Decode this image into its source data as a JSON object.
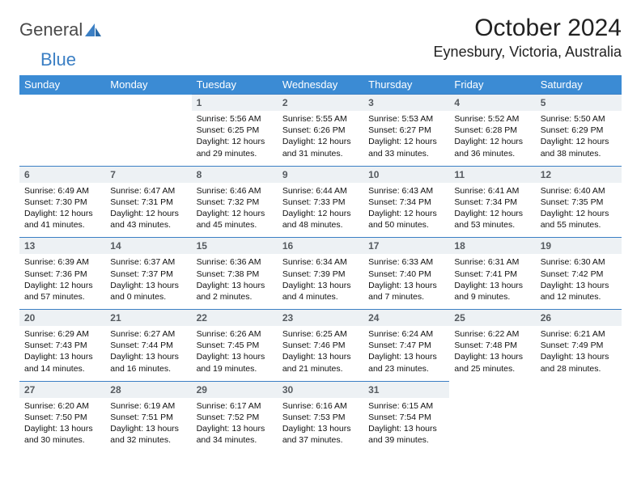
{
  "logo": {
    "text1": "General",
    "text2": "Blue"
  },
  "title": "October 2024",
  "location": "Eynesbury, Victoria, Australia",
  "colors": {
    "header_bg": "#3b8bd4",
    "header_fg": "#ffffff",
    "daynum_bg": "#edf1f4",
    "daynum_fg": "#565b60",
    "border": "#3b7fc4",
    "logo_gray": "#4a4a4a",
    "logo_blue": "#3b7fc4"
  },
  "day_headers": [
    "Sunday",
    "Monday",
    "Tuesday",
    "Wednesday",
    "Thursday",
    "Friday",
    "Saturday"
  ],
  "weeks": [
    [
      null,
      null,
      {
        "n": "1",
        "sr": "Sunrise: 5:56 AM",
        "ss": "Sunset: 6:25 PM",
        "d1": "Daylight: 12 hours",
        "d2": "and 29 minutes."
      },
      {
        "n": "2",
        "sr": "Sunrise: 5:55 AM",
        "ss": "Sunset: 6:26 PM",
        "d1": "Daylight: 12 hours",
        "d2": "and 31 minutes."
      },
      {
        "n": "3",
        "sr": "Sunrise: 5:53 AM",
        "ss": "Sunset: 6:27 PM",
        "d1": "Daylight: 12 hours",
        "d2": "and 33 minutes."
      },
      {
        "n": "4",
        "sr": "Sunrise: 5:52 AM",
        "ss": "Sunset: 6:28 PM",
        "d1": "Daylight: 12 hours",
        "d2": "and 36 minutes."
      },
      {
        "n": "5",
        "sr": "Sunrise: 5:50 AM",
        "ss": "Sunset: 6:29 PM",
        "d1": "Daylight: 12 hours",
        "d2": "and 38 minutes."
      }
    ],
    [
      {
        "n": "6",
        "sr": "Sunrise: 6:49 AM",
        "ss": "Sunset: 7:30 PM",
        "d1": "Daylight: 12 hours",
        "d2": "and 41 minutes."
      },
      {
        "n": "7",
        "sr": "Sunrise: 6:47 AM",
        "ss": "Sunset: 7:31 PM",
        "d1": "Daylight: 12 hours",
        "d2": "and 43 minutes."
      },
      {
        "n": "8",
        "sr": "Sunrise: 6:46 AM",
        "ss": "Sunset: 7:32 PM",
        "d1": "Daylight: 12 hours",
        "d2": "and 45 minutes."
      },
      {
        "n": "9",
        "sr": "Sunrise: 6:44 AM",
        "ss": "Sunset: 7:33 PM",
        "d1": "Daylight: 12 hours",
        "d2": "and 48 minutes."
      },
      {
        "n": "10",
        "sr": "Sunrise: 6:43 AM",
        "ss": "Sunset: 7:34 PM",
        "d1": "Daylight: 12 hours",
        "d2": "and 50 minutes."
      },
      {
        "n": "11",
        "sr": "Sunrise: 6:41 AM",
        "ss": "Sunset: 7:34 PM",
        "d1": "Daylight: 12 hours",
        "d2": "and 53 minutes."
      },
      {
        "n": "12",
        "sr": "Sunrise: 6:40 AM",
        "ss": "Sunset: 7:35 PM",
        "d1": "Daylight: 12 hours",
        "d2": "and 55 minutes."
      }
    ],
    [
      {
        "n": "13",
        "sr": "Sunrise: 6:39 AM",
        "ss": "Sunset: 7:36 PM",
        "d1": "Daylight: 12 hours",
        "d2": "and 57 minutes."
      },
      {
        "n": "14",
        "sr": "Sunrise: 6:37 AM",
        "ss": "Sunset: 7:37 PM",
        "d1": "Daylight: 13 hours",
        "d2": "and 0 minutes."
      },
      {
        "n": "15",
        "sr": "Sunrise: 6:36 AM",
        "ss": "Sunset: 7:38 PM",
        "d1": "Daylight: 13 hours",
        "d2": "and 2 minutes."
      },
      {
        "n": "16",
        "sr": "Sunrise: 6:34 AM",
        "ss": "Sunset: 7:39 PM",
        "d1": "Daylight: 13 hours",
        "d2": "and 4 minutes."
      },
      {
        "n": "17",
        "sr": "Sunrise: 6:33 AM",
        "ss": "Sunset: 7:40 PM",
        "d1": "Daylight: 13 hours",
        "d2": "and 7 minutes."
      },
      {
        "n": "18",
        "sr": "Sunrise: 6:31 AM",
        "ss": "Sunset: 7:41 PM",
        "d1": "Daylight: 13 hours",
        "d2": "and 9 minutes."
      },
      {
        "n": "19",
        "sr": "Sunrise: 6:30 AM",
        "ss": "Sunset: 7:42 PM",
        "d1": "Daylight: 13 hours",
        "d2": "and 12 minutes."
      }
    ],
    [
      {
        "n": "20",
        "sr": "Sunrise: 6:29 AM",
        "ss": "Sunset: 7:43 PM",
        "d1": "Daylight: 13 hours",
        "d2": "and 14 minutes."
      },
      {
        "n": "21",
        "sr": "Sunrise: 6:27 AM",
        "ss": "Sunset: 7:44 PM",
        "d1": "Daylight: 13 hours",
        "d2": "and 16 minutes."
      },
      {
        "n": "22",
        "sr": "Sunrise: 6:26 AM",
        "ss": "Sunset: 7:45 PM",
        "d1": "Daylight: 13 hours",
        "d2": "and 19 minutes."
      },
      {
        "n": "23",
        "sr": "Sunrise: 6:25 AM",
        "ss": "Sunset: 7:46 PM",
        "d1": "Daylight: 13 hours",
        "d2": "and 21 minutes."
      },
      {
        "n": "24",
        "sr": "Sunrise: 6:24 AM",
        "ss": "Sunset: 7:47 PM",
        "d1": "Daylight: 13 hours",
        "d2": "and 23 minutes."
      },
      {
        "n": "25",
        "sr": "Sunrise: 6:22 AM",
        "ss": "Sunset: 7:48 PM",
        "d1": "Daylight: 13 hours",
        "d2": "and 25 minutes."
      },
      {
        "n": "26",
        "sr": "Sunrise: 6:21 AM",
        "ss": "Sunset: 7:49 PM",
        "d1": "Daylight: 13 hours",
        "d2": "and 28 minutes."
      }
    ],
    [
      {
        "n": "27",
        "sr": "Sunrise: 6:20 AM",
        "ss": "Sunset: 7:50 PM",
        "d1": "Daylight: 13 hours",
        "d2": "and 30 minutes."
      },
      {
        "n": "28",
        "sr": "Sunrise: 6:19 AM",
        "ss": "Sunset: 7:51 PM",
        "d1": "Daylight: 13 hours",
        "d2": "and 32 minutes."
      },
      {
        "n": "29",
        "sr": "Sunrise: 6:17 AM",
        "ss": "Sunset: 7:52 PM",
        "d1": "Daylight: 13 hours",
        "d2": "and 34 minutes."
      },
      {
        "n": "30",
        "sr": "Sunrise: 6:16 AM",
        "ss": "Sunset: 7:53 PM",
        "d1": "Daylight: 13 hours",
        "d2": "and 37 minutes."
      },
      {
        "n": "31",
        "sr": "Sunrise: 6:15 AM",
        "ss": "Sunset: 7:54 PM",
        "d1": "Daylight: 13 hours",
        "d2": "and 39 minutes."
      },
      null,
      null
    ]
  ]
}
